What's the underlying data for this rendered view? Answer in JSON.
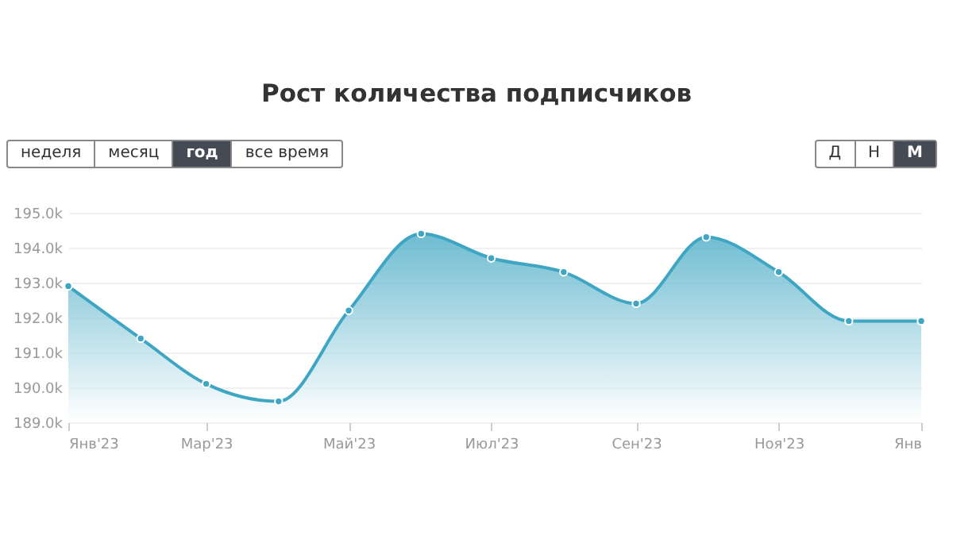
{
  "chart_data": {
    "type": "area",
    "title": "Рост количества подписчиков",
    "annotations": [
      "неделя",
      "месяц",
      "год",
      "все время",
      "Д",
      "Н",
      "М"
    ],
    "x": [
      "2023-01",
      "2023-02",
      "2023-03",
      "2023-04",
      "2023-05",
      "2023-06",
      "2023-07",
      "2023-08",
      "2023-09",
      "2023-10",
      "2023-11",
      "2023-12",
      "2024-01"
    ],
    "series": [
      {
        "color": "#3ea6c2",
        "values": [
          192900,
          191400,
          190100,
          189600,
          192200,
          194400,
          193700,
          193300,
          192400,
          194300,
          193300,
          191900,
          191900
        ]
      }
    ],
    "xlim": [
      "2023-01",
      "2024-01"
    ],
    "xticks": [
      {
        "value": "2023-01",
        "label": "Янв'23"
      },
      {
        "value": "2023-03",
        "label": "Мар'23"
      },
      {
        "value": "2023-05",
        "label": "Май'23"
      },
      {
        "value": "2023-07",
        "label": "Июл'23"
      },
      {
        "value": "2023-09",
        "label": "Сен'23"
      },
      {
        "value": "2023-11",
        "label": "Ноя'23"
      },
      {
        "value": "2024-01",
        "label": "Янв"
      }
    ],
    "ylim": [
      189000,
      195000
    ],
    "yticks": [
      {
        "value": 189000,
        "label": "189.0k"
      },
      {
        "value": 190000,
        "label": "190.0k"
      },
      {
        "value": 191000,
        "label": "191.0k"
      },
      {
        "value": 192000,
        "label": "192.0k"
      },
      {
        "value": 193000,
        "label": "193.0k"
      },
      {
        "value": 194000,
        "label": "194.0k"
      },
      {
        "value": 195000,
        "label": "195.0k"
      }
    ],
    "grid": "y",
    "marker": "circle"
  }
}
